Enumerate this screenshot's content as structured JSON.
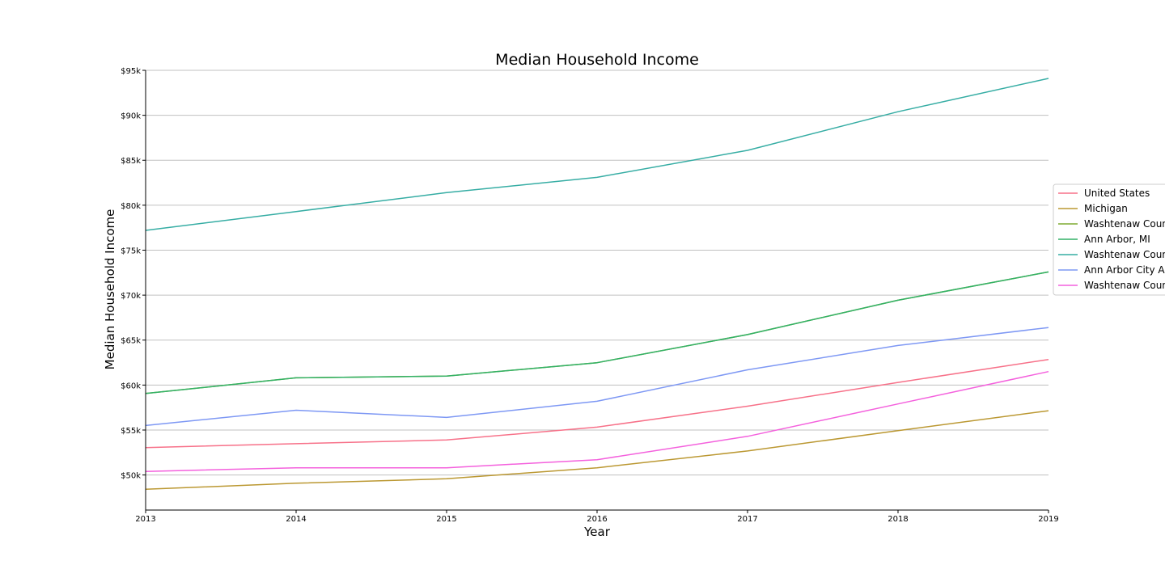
{
  "chart_data": {
    "type": "line",
    "title": "Median Household Income",
    "xlabel": "Year",
    "ylabel": "Median Household Income",
    "x": [
      2013,
      2014,
      2015,
      2016,
      2017,
      2018,
      2019
    ],
    "x_tick_labels": [
      "2013",
      "2014",
      "2015",
      "2016",
      "2017",
      "2018",
      "2019"
    ],
    "y_ticks": [
      50000,
      55000,
      60000,
      65000,
      70000,
      75000,
      80000,
      85000,
      90000,
      95000
    ],
    "y_tick_labels": [
      "$50k",
      "$55k",
      "$60k",
      "$65k",
      "$70k",
      "$75k",
      "$80k",
      "$85k",
      "$90k",
      "$95k"
    ],
    "xlim": [
      2013,
      2019
    ],
    "ylim": [
      46100,
      95000
    ],
    "grid": "horizontal",
    "legend_position": "right",
    "series": [
      {
        "name": "United States",
        "color": "#f77189",
        "values": [
          53046,
          53482,
          53889,
          55322,
          57652,
          60293,
          62843
        ]
      },
      {
        "name": "Michigan",
        "color": "#bb9832",
        "values": [
          48411,
          49087,
          49576,
          50803,
          52668,
          54938,
          57144
        ]
      },
      {
        "name": "Washtenaw County, MI",
        "color": "#7fac32",
        "values": [
          59065,
          60805,
          61003,
          62484,
          65618,
          69434,
          72586
        ]
      },
      {
        "name": "Ann Arbor, MI",
        "color": "#32b166",
        "values": [
          59065,
          60805,
          61003,
          62484,
          65618,
          69434,
          72586
        ]
      },
      {
        "name": "Washtenaw County Townships",
        "color": "#36ada4",
        "values": [
          77200,
          79300,
          81400,
          83100,
          86100,
          90400,
          94100
        ]
      },
      {
        "name": "Ann Arbor City Area",
        "color": "#7e98f4",
        "values": [
          55500,
          57200,
          56400,
          58200,
          61700,
          64400,
          66400
        ]
      },
      {
        "name": "Washtenaw County Other",
        "color": "#f461dd",
        "values": [
          50400,
          50800,
          50800,
          51700,
          54300,
          57900,
          61500
        ]
      }
    ]
  }
}
